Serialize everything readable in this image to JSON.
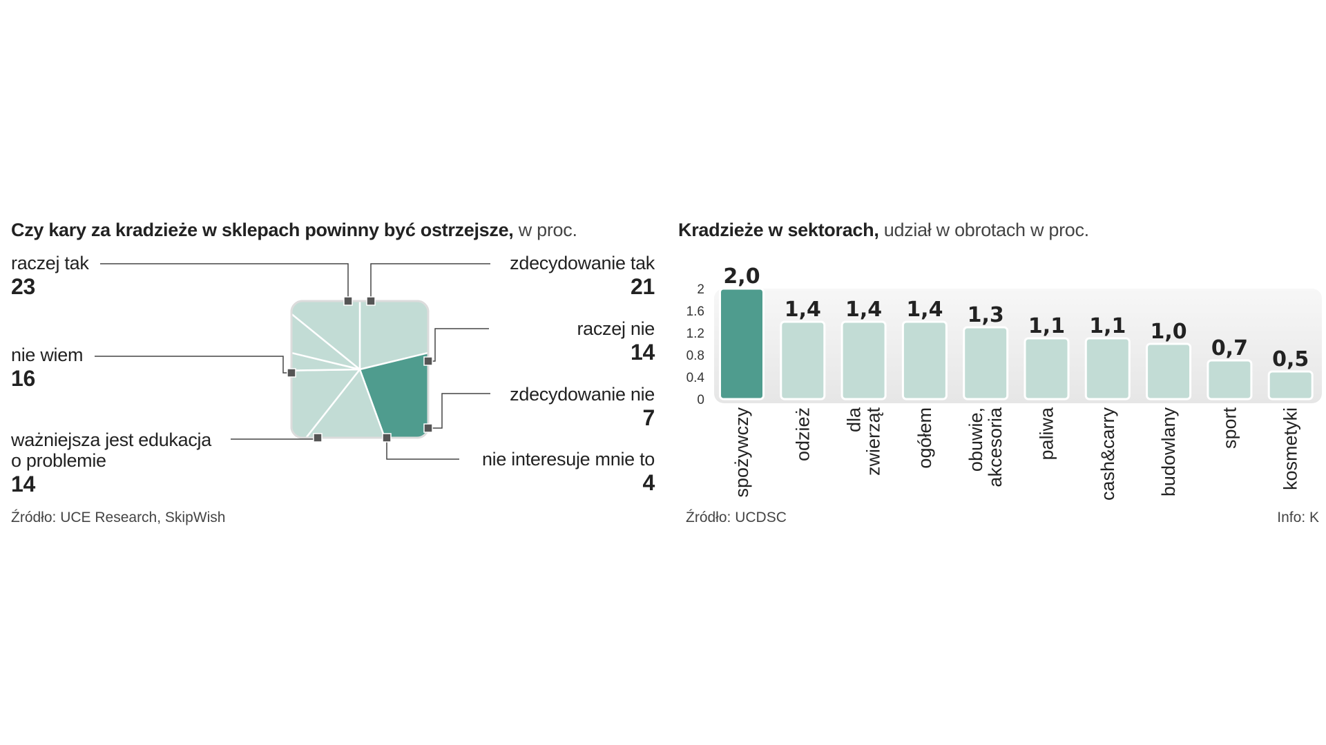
{
  "colors": {
    "accent": "#4f9c8e",
    "pale": "#c2dcd5",
    "panel_bg": "#eeeeee",
    "text": "#222222"
  },
  "left": {
    "title_bold": "Czy kary za kradzieże w sklepach powinny być ostrzejsze,",
    "title_rest": " w proc.",
    "source": "Źródło: UCE Research, SkipWish"
  },
  "right": {
    "title_bold": "Kradzieże w sektorach,",
    "title_rest": " udział w obrotach w proc.",
    "source": "Źródło: UCDSC",
    "info": "Info: K"
  },
  "chart_data": [
    {
      "type": "pie",
      "title": "Czy kary za kradzieże w sklepach powinny być ostrzejsze, w proc.",
      "categories": [
        "zdecydowanie tak",
        "raczej tak",
        "nie wiem",
        "ważniejsza jest edukacja o problemie",
        "nie interesuje mnie to",
        "zdecydowanie nie",
        "raczej nie"
      ],
      "labels": [
        "zdecydowanie tak",
        "raczej tak",
        "nie wiem",
        "ważniejsza jest edukacja\no problemie",
        "nie interesuje mnie to",
        "zdecydowanie nie",
        "raczej nie"
      ],
      "values": [
        21,
        23,
        16,
        14,
        4,
        7,
        14
      ],
      "highlight": "raczej tak"
    },
    {
      "type": "bar",
      "title": "Kradzieże w sektorach, udział w obrotach w proc.",
      "categories": [
        "spożywczy",
        "odzież",
        "dla\nzwierząt",
        "ogółem",
        "obuwie,\nakcesoria",
        "paliwa",
        "cash&carry",
        "budowlany",
        "sport",
        "kosmetyki"
      ],
      "values": [
        2.0,
        1.4,
        1.4,
        1.4,
        1.3,
        1.1,
        1.1,
        1.0,
        0.7,
        0.5
      ],
      "value_labels": [
        "2,0",
        "1,4",
        "1,4",
        "1,4",
        "1,3",
        "1,1",
        "1,1",
        "1,0",
        "0,7",
        "0,5"
      ],
      "yticks": [
        "0",
        "0.4",
        "0.8",
        "1.2",
        "1.6",
        "2"
      ],
      "ylim": [
        0,
        2.0
      ],
      "highlight": "spożywczy"
    }
  ]
}
